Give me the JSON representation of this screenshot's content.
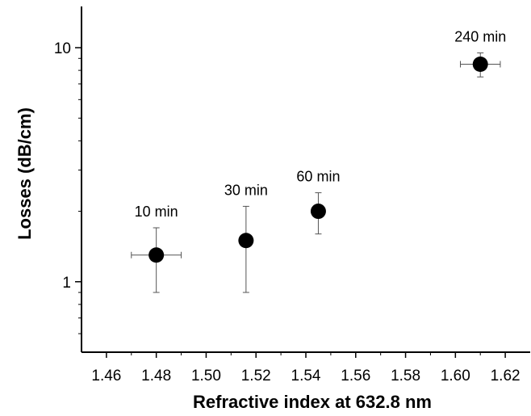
{
  "chart_data": {
    "type": "scatter",
    "title": "",
    "xlabel": "Refractive index at 632.8 nm",
    "ylabel": "Losses (dB/cm)",
    "xlim": [
      1.45,
      1.63
    ],
    "ylim": [
      0.5,
      15
    ],
    "yscale": "log",
    "x_ticks": [
      1.46,
      1.48,
      1.5,
      1.52,
      1.54,
      1.56,
      1.58,
      1.6,
      1.62
    ],
    "x_tick_labels": [
      "1.46",
      "1.48",
      "1.50",
      "1.52",
      "1.54",
      "1.56",
      "1.58",
      "1.60",
      "1.62"
    ],
    "y_major_ticks": [
      1,
      10
    ],
    "y_tick_labels": [
      "1",
      "10"
    ],
    "y_minor_ticks": [
      0.6,
      0.7,
      0.8,
      0.9,
      2,
      3,
      4,
      5,
      6,
      7,
      8,
      9
    ],
    "grid": false,
    "points": [
      {
        "label": "10 min",
        "x": 1.48,
        "y": 1.3,
        "x_err": 0.01,
        "y_low": 0.9,
        "y_high": 1.7
      },
      {
        "label": "30 min",
        "x": 1.516,
        "y": 1.5,
        "x_err": 0,
        "y_low": 0.9,
        "y_high": 2.1
      },
      {
        "label": "60 min",
        "x": 1.545,
        "y": 2.0,
        "x_err": 0,
        "y_low": 1.6,
        "y_high": 2.4
      },
      {
        "label": "240 min",
        "x": 1.61,
        "y": 8.5,
        "x_err": 0.008,
        "y_low": 7.5,
        "y_high": 9.5
      }
    ],
    "marker_color": "#000000"
  }
}
